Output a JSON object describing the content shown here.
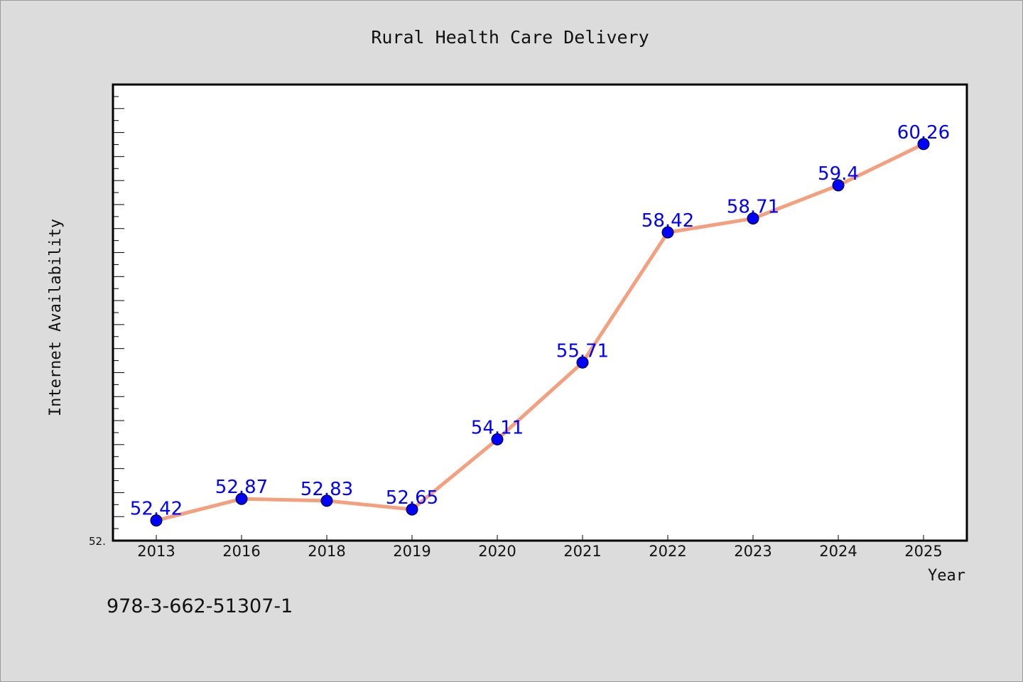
{
  "chart_data": {
    "type": "line",
    "title": "Rural Health Care Delivery",
    "xlabel": "Year",
    "ylabel": "Internet Availability",
    "categories": [
      "2013",
      "2016",
      "2018",
      "2019",
      "2020",
      "2021",
      "2022",
      "2023",
      "2024",
      "2025"
    ],
    "series": [
      {
        "values": [
          52.42,
          52.87,
          52.83,
          52.65,
          54.11,
          55.71,
          58.42,
          58.71,
          59.4,
          60.26
        ]
      }
    ],
    "data_labels": [
      "52.42",
      "52.87",
      "52.83",
      "52.65",
      "54.11",
      "55.71",
      "58.42",
      "58.71",
      "59.4",
      "60.26"
    ],
    "y_tick_label": "52.",
    "ylim": [
      52.0,
      61.5
    ],
    "grid": false,
    "legend": "none",
    "colors": {
      "line": "#f4a07e",
      "marker": "#0000ff",
      "label": "#0000ff",
      "background": "#dcdcdc",
      "plot_background": "#ffffff"
    }
  },
  "footer": {
    "isbn": "978-3-662-51307-1"
  }
}
